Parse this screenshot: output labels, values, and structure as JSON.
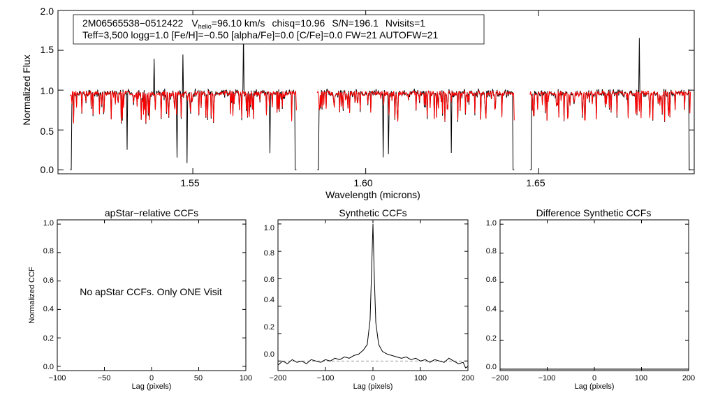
{
  "chart_data": [
    {
      "type": "line",
      "name": "spectrum",
      "xlabel": "Wavelength (microns)",
      "ylabel": "Normalized Flux",
      "xlim": [
        1.511,
        1.695
      ],
      "ylim": [
        -0.05,
        2.0
      ],
      "x_ticks": [
        "1.55",
        "1.60",
        "1.65"
      ],
      "x_tick_values": [
        1.55,
        1.6,
        1.65
      ],
      "y_ticks": [
        "0.0",
        "0.5",
        "1.0",
        "1.5",
        "2.0"
      ],
      "y_tick_values": [
        0.0,
        0.5,
        1.0,
        1.5,
        2.0
      ],
      "detector_ranges": [
        [
          1.5145,
          1.58
        ],
        [
          1.586,
          1.643
        ],
        [
          1.6475,
          1.694
        ]
      ],
      "series": [
        {
          "name": "observed",
          "color": "#000000"
        },
        {
          "name": "model",
          "color": "#ff0000"
        }
      ],
      "annotation": {
        "id": "2M06565538−0512422",
        "vhelio_label": "V",
        "vhelio_sub": "helio",
        "vhelio_value": "=96.10 km/s",
        "chisq": "chisq=10.96",
        "sn": "S/N=196.1",
        "nvisits": "Nvisits=1",
        "line2": "Teff=3,500 logg=1.0 [Fe/H]=−0.50 [alpha/Fe]=0.0 [C/Fe]=0.0 FW=21 AUTOFW=21"
      }
    },
    {
      "type": "line",
      "name": "apstar-ccf",
      "title": "apStar−relative CCFs",
      "xlabel": "Lag (pixels)",
      "ylabel": "Normalized CCF",
      "xlim": [
        -100,
        100
      ],
      "ylim": [
        -0.03,
        1.03
      ],
      "x_ticks": [
        "−100",
        "−50",
        "0",
        "50",
        "100"
      ],
      "x_tick_values": [
        -100,
        -50,
        0,
        50,
        100
      ],
      "y_ticks": [
        "0.0",
        "0.2",
        "0.4",
        "0.6",
        "0.8",
        "1.0"
      ],
      "y_tick_values": [
        0.0,
        0.2,
        0.4,
        0.6,
        0.8,
        1.0
      ],
      "message": "No apStar CCFs.  Only ONE Visit"
    },
    {
      "type": "line",
      "name": "synthetic-ccf",
      "title": "Synthetic CCFs",
      "xlabel": "Lag (pixels)",
      "xlim": [
        -200,
        200
      ],
      "ylim": [
        -0.07,
        1.03
      ],
      "x_ticks": [
        "−200",
        "−100",
        "0",
        "100",
        "200"
      ],
      "x_tick_values": [
        -200,
        -100,
        0,
        100,
        200
      ],
      "y_ticks": [
        "0.0",
        "0.2",
        "0.4",
        "0.6",
        "0.8",
        "1.0"
      ],
      "y_tick_values": [
        0.0,
        0.2,
        0.4,
        0.6,
        0.8,
        1.0
      ],
      "peak_lag": 0,
      "peak_value": 1.0,
      "baseline": 0.0,
      "ccf": [
        [
          -200,
          -0.03
        ],
        [
          -190,
          0.0
        ],
        [
          -180,
          -0.02
        ],
        [
          -170,
          0.01
        ],
        [
          -160,
          -0.01
        ],
        [
          -150,
          0.0
        ],
        [
          -140,
          -0.02
        ],
        [
          -130,
          0.01
        ],
        [
          -120,
          0.0
        ],
        [
          -110,
          -0.01
        ],
        [
          -100,
          0.01
        ],
        [
          -90,
          0.0
        ],
        [
          -80,
          0.02
        ],
        [
          -70,
          0.01
        ],
        [
          -60,
          0.03
        ],
        [
          -50,
          0.02
        ],
        [
          -40,
          0.04
        ],
        [
          -30,
          0.05
        ],
        [
          -20,
          0.08
        ],
        [
          -12,
          0.12
        ],
        [
          -6,
          0.3
        ],
        [
          -3,
          0.65
        ],
        [
          0,
          1.0
        ],
        [
          3,
          0.6
        ],
        [
          6,
          0.28
        ],
        [
          12,
          0.12
        ],
        [
          20,
          0.07
        ],
        [
          30,
          0.05
        ],
        [
          40,
          0.04
        ],
        [
          50,
          0.03
        ],
        [
          60,
          0.02
        ],
        [
          70,
          0.03
        ],
        [
          80,
          0.01
        ],
        [
          90,
          0.02
        ],
        [
          100,
          0.0
        ],
        [
          110,
          0.01
        ],
        [
          120,
          -0.01
        ],
        [
          130,
          0.01
        ],
        [
          140,
          0.0
        ],
        [
          150,
          -0.01
        ],
        [
          160,
          0.02
        ],
        [
          170,
          0.0
        ],
        [
          180,
          -0.02
        ],
        [
          190,
          -0.01
        ],
        [
          195,
          -0.05
        ],
        [
          200,
          -0.04
        ]
      ]
    },
    {
      "type": "line",
      "name": "difference-ccf",
      "title": "Difference Synthetic CCFs",
      "xlabel": "Lag (pixels)",
      "xlim": [
        -200,
        200
      ],
      "ylim": [
        -0.01,
        1.03
      ],
      "x_ticks": [
        "−200",
        "−100",
        "0",
        "100",
        "200"
      ],
      "x_tick_values": [
        -200,
        -100,
        0,
        100,
        200
      ],
      "y_ticks": [
        "0.0",
        "0.2",
        "0.4",
        "0.6",
        "0.8",
        "1.0"
      ],
      "y_tick_values": [
        0.0,
        0.2,
        0.4,
        0.6,
        0.8,
        1.0
      ],
      "values_constant": 0.0
    }
  ]
}
